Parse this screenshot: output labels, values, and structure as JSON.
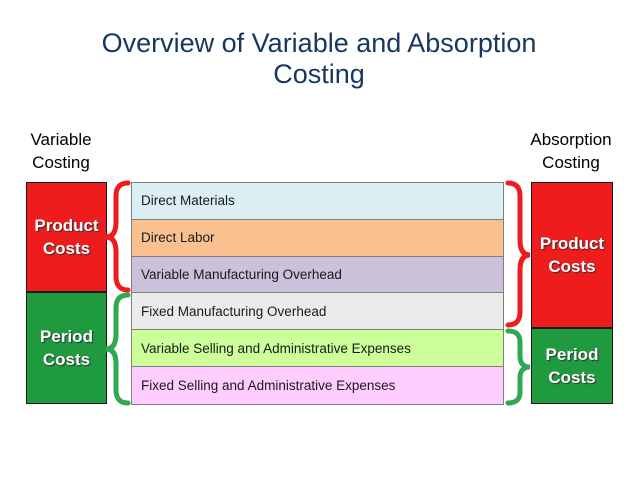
{
  "title": {
    "line1": "Overview of Variable and Absorption",
    "line2": "Costing"
  },
  "variable": {
    "heading_line1": "Variable",
    "heading_line2": "Costing",
    "product": {
      "line1": "Product",
      "line2": "Costs"
    },
    "period": {
      "line1": "Period",
      "line2": "Costs"
    }
  },
  "absorption": {
    "heading_line1": "Absorption",
    "heading_line2": "Costing",
    "product": {
      "line1": "Product",
      "line2": "Costs"
    },
    "period": {
      "line1": "Period",
      "line2": "Costs"
    }
  },
  "cost_items": [
    {
      "label": "Direct Materials",
      "color": "#dbeef4"
    },
    {
      "label": "Direct Labor",
      "color": "#fac090"
    },
    {
      "label": "Variable Manufacturing Overhead",
      "color": "#ccc1da"
    },
    {
      "label": "Fixed Manufacturing Overhead",
      "color": "#ebebeb"
    },
    {
      "label": "Variable Selling and Administrative Expenses",
      "color": "#ccff99"
    },
    {
      "label": "Fixed Selling and Administrative Expenses",
      "color": "#ffccff"
    }
  ],
  "colors": {
    "product_box": "#ee1c1c",
    "period_box": "#1f9a3f",
    "red_brace": "#ee1c1c",
    "green_brace": "#2fa84f",
    "title": "#17375e"
  }
}
